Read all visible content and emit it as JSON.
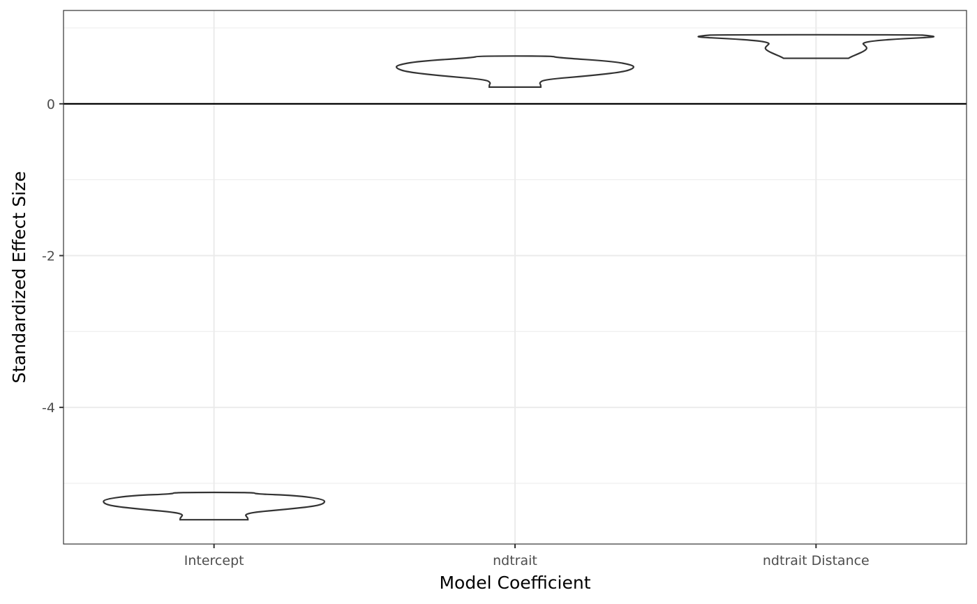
{
  "chart_data": {
    "type": "violin",
    "title": "",
    "xlabel": "Model Coefficient",
    "ylabel": "Standardized Effect Size",
    "ylim": [
      -5.8,
      1.23
    ],
    "yticks": [
      0,
      -2,
      -4
    ],
    "ytick_labels": [
      "0",
      "-2",
      "-4"
    ],
    "categories": [
      "Intercept",
      "ndtrait",
      "ndtrait Distance"
    ],
    "reference_line": 0,
    "grid": true,
    "violins": [
      {
        "category": "Intercept",
        "min": -5.48,
        "max": -5.12,
        "profile": [
          [
            -5.48,
            0.25
          ],
          [
            -5.46,
            0.25
          ],
          [
            -5.44,
            0.24
          ],
          [
            -5.41,
            0.23
          ],
          [
            -5.38,
            0.3
          ],
          [
            -5.34,
            0.55
          ],
          [
            -5.3,
            0.75
          ],
          [
            -5.26,
            0.82
          ],
          [
            -5.21,
            0.81
          ],
          [
            -5.16,
            0.6
          ],
          [
            -5.14,
            0.3
          ],
          [
            -5.12,
            0.3
          ]
        ]
      },
      {
        "category": "ndtrait",
        "min": 0.22,
        "max": 0.63,
        "profile": [
          [
            0.22,
            0.19
          ],
          [
            0.25,
            0.19
          ],
          [
            0.28,
            0.18
          ],
          [
            0.32,
            0.22
          ],
          [
            0.37,
            0.55
          ],
          [
            0.42,
            0.8
          ],
          [
            0.47,
            0.88
          ],
          [
            0.51,
            0.87
          ],
          [
            0.56,
            0.72
          ],
          [
            0.61,
            0.3
          ],
          [
            0.63,
            0.28
          ]
        ]
      },
      {
        "category": "ndtrait Distance",
        "min": 0.6,
        "max": 0.91,
        "profile": [
          [
            0.6,
            0.24
          ],
          [
            0.62,
            0.26
          ],
          [
            0.65,
            0.3
          ],
          [
            0.69,
            0.35
          ],
          [
            0.73,
            0.38
          ],
          [
            0.77,
            0.36
          ],
          [
            0.8,
            0.34
          ],
          [
            0.83,
            0.42
          ],
          [
            0.86,
            0.65
          ],
          [
            0.88,
            0.9
          ],
          [
            0.9,
            0.82
          ],
          [
            0.91,
            0.75
          ]
        ]
      }
    ]
  }
}
